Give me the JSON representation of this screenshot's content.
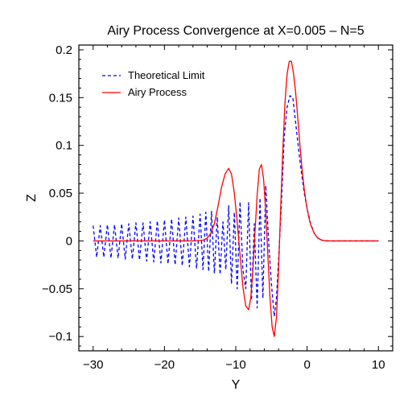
{
  "chart_data": {
    "type": "line",
    "title": "Airy Process Convergence at X=0.005 – N=5",
    "xlabel": "Y",
    "ylabel": "Z",
    "xlim": [
      -32,
      12
    ],
    "ylim": [
      -0.115,
      0.205
    ],
    "xticks": [
      -30,
      -20,
      -10,
      0,
      10
    ],
    "yticks": [
      -0.1,
      -0.05,
      0,
      0.05,
      0.1,
      0.15,
      0.2
    ],
    "ytick_labels": [
      "−0.1",
      "−0.05",
      "0",
      "0.05",
      "0.1",
      "0.15",
      "0.2"
    ],
    "xtick_labels": [
      "−30",
      "−20",
      "−10",
      "0",
      "10"
    ],
    "grid": false,
    "legend_position": "top-left",
    "series": [
      {
        "name": "Theoretical Limit",
        "color": "#0000ff",
        "style": "dashed",
        "x": [
          -30,
          -29.5,
          -29,
          -28.5,
          -28,
          -27.5,
          -27,
          -26.5,
          -26,
          -25.5,
          -25,
          -24.5,
          -24,
          -23.5,
          -23,
          -22.5,
          -22,
          -21.5,
          -21,
          -20.5,
          -20,
          -19.5,
          -19,
          -18.5,
          -18,
          -17.5,
          -17,
          -16.5,
          -16,
          -15.5,
          -15,
          -14.6,
          -14.2,
          -13.8,
          -13.4,
          -13,
          -12.6,
          -12.2,
          -11.8,
          -11.4,
          -11,
          -10.6,
          -10.2,
          -9.8,
          -9.4,
          -9,
          -8.6,
          -8.2,
          -7.8,
          -7.4,
          -7,
          -6.6,
          -6.2,
          -5.8,
          -5.4,
          -5,
          -4.6,
          -4.3,
          -4,
          -3.6,
          -3.2,
          -2.8,
          -2.4,
          -2,
          -1.7,
          -1.4,
          -1.1,
          -0.8,
          -0.4,
          0,
          0.5,
          1,
          1.5,
          2,
          2.5,
          3,
          3.5,
          4,
          5,
          6,
          8,
          10
        ],
        "y": [
          0.016,
          -0.017,
          0.016,
          -0.017,
          0.017,
          -0.018,
          0.017,
          -0.018,
          0.018,
          -0.019,
          0.018,
          -0.019,
          0.019,
          -0.02,
          0.019,
          -0.021,
          0.02,
          -0.022,
          0.021,
          -0.023,
          0.022,
          -0.024,
          0.023,
          -0.025,
          0.024,
          -0.026,
          0.025,
          -0.027,
          0.026,
          -0.029,
          0.028,
          -0.03,
          0.03,
          -0.032,
          0.031,
          -0.034,
          0.025,
          -0.035,
          0.02,
          -0.03,
          0.037,
          -0.045,
          0.03,
          -0.05,
          0.041,
          -0.03,
          -0.05,
          0.04,
          -0.062,
          0.018,
          -0.07,
          0.045,
          -0.06,
          0.058,
          0.0,
          -0.045,
          -0.079,
          -0.06,
          -0.02,
          0.04,
          0.11,
          0.14,
          0.152,
          0.15,
          0.13,
          0.11,
          0.09,
          0.072,
          0.05,
          0.034,
          0.018,
          0.008,
          0.003,
          0.001,
          0.0,
          0.0,
          0.0,
          0.0,
          0.0,
          0.0,
          0.0,
          0.0
        ]
      },
      {
        "name": "Airy Process",
        "color": "#ff0000",
        "style": "solid",
        "x": [
          -30,
          -26,
          -22,
          -18,
          -16,
          -15,
          -14.5,
          -14,
          -13.5,
          -13,
          -12.5,
          -12,
          -11.5,
          -11,
          -10.6,
          -10.2,
          -9.8,
          -9.4,
          -9,
          -8.6,
          -8.2,
          -7.9,
          -7.6,
          -7.3,
          -7,
          -6.7,
          -6.4,
          -6.1,
          -5.8,
          -5.5,
          -5.2,
          -4.9,
          -4.6,
          -4.3,
          -4,
          -3.7,
          -3.4,
          -3.1,
          -2.8,
          -2.5,
          -2.2,
          -1.9,
          -1.6,
          -1.3,
          -1.0,
          -0.7,
          -0.4,
          -0.1,
          0.2,
          0.5,
          1,
          1.5,
          2,
          2.5,
          3,
          3.5,
          4,
          5,
          6,
          8,
          10
        ],
        "y": [
          0,
          0,
          0,
          0,
          0,
          0.0005,
          0.001,
          0.003,
          0.008,
          0.018,
          0.036,
          0.056,
          0.07,
          0.076,
          0.07,
          0.05,
          0.02,
          -0.015,
          -0.048,
          -0.068,
          -0.072,
          -0.06,
          -0.03,
          0.01,
          0.048,
          0.075,
          0.08,
          0.065,
          0.03,
          -0.015,
          -0.06,
          -0.09,
          -0.1,
          -0.08,
          -0.03,
          0.035,
          0.095,
          0.145,
          0.175,
          0.188,
          0.188,
          0.175,
          0.155,
          0.128,
          0.1,
          0.075,
          0.054,
          0.038,
          0.026,
          0.017,
          0.008,
          0.003,
          0.001,
          0.0003,
          0.0001,
          0,
          0,
          0,
          0,
          0,
          0
        ]
      }
    ]
  }
}
